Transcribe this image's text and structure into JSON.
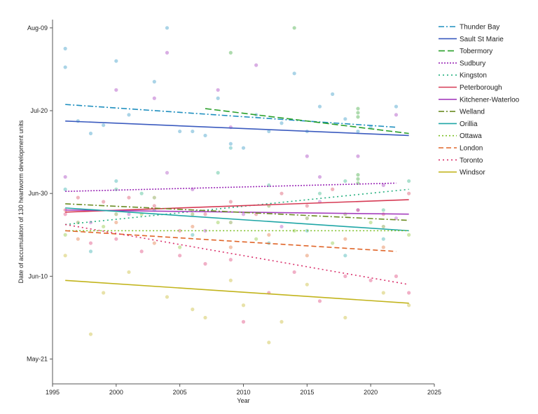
{
  "chart_data": {
    "type": "scatter",
    "xlabel": "Year",
    "ylabel": "Date of accumulation of 130 heartworm development units",
    "xlim": [
      1995,
      2025
    ],
    "ylim": [
      135,
      223
    ],
    "x_ticks": [
      1995,
      2000,
      2005,
      2010,
      2015,
      2020,
      2025
    ],
    "y_ticks": [
      {
        "value": 141,
        "label": "May-21"
      },
      {
        "value": 161,
        "label": "Jun-10"
      },
      {
        "value": 181,
        "label": "Jun-30"
      },
      {
        "value": 201,
        "label": "Jul-20"
      },
      {
        "value": 221,
        "label": "Aug-09"
      }
    ],
    "grid": false,
    "legend_position": "right",
    "series": [
      {
        "name": "Thunder Bay",
        "color": "#1f8fbf",
        "dash": "8,3,2,3",
        "trend": [
          [
            1996,
            202.5
          ],
          [
            2022,
            197
          ]
        ],
        "points": [
          [
            1996,
            216
          ],
          [
            1996,
            211.5
          ],
          [
            1997,
            198.5
          ],
          [
            1998,
            195.5
          ],
          [
            1999,
            197.5
          ],
          [
            2000,
            213
          ],
          [
            2001,
            200
          ],
          [
            2003,
            208
          ],
          [
            2004,
            221
          ],
          [
            2005,
            196
          ],
          [
            2006,
            196
          ],
          [
            2007,
            195
          ],
          [
            2008,
            204
          ],
          [
            2009,
            193
          ],
          [
            2010,
            192
          ],
          [
            2011,
            200
          ],
          [
            2012,
            196
          ],
          [
            2013,
            198
          ],
          [
            2014,
            210
          ],
          [
            2015,
            196
          ],
          [
            2016,
            202
          ],
          [
            2017,
            205
          ],
          [
            2018,
            199
          ],
          [
            2019,
            196
          ],
          [
            2020,
            197
          ],
          [
            2022,
            202
          ]
        ]
      },
      {
        "name": "Sault St Marie",
        "color": "#3b5bbf",
        "dash": "",
        "trend": [
          [
            1996,
            198.5
          ],
          [
            2023,
            195
          ]
        ],
        "points": []
      },
      {
        "name": "Tobermory",
        "color": "#2aa02a",
        "dash": "9,4",
        "trend": [
          [
            2007,
            201.5
          ],
          [
            2023,
            195.5
          ]
        ],
        "points": [
          [
            2009,
            215
          ],
          [
            2014,
            221
          ],
          [
            2019,
            201.5
          ],
          [
            2019,
            200.5
          ],
          [
            2019,
            199.5
          ],
          [
            2019,
            185.5
          ],
          [
            2019,
            184.5
          ],
          [
            2019,
            183.5
          ]
        ]
      },
      {
        "name": "Sudbury",
        "color": "#9b2ab7",
        "dash": "2,2",
        "trend": [
          [
            1996,
            181.5
          ],
          [
            2022,
            183.5
          ]
        ],
        "points": [
          [
            1996,
            185
          ],
          [
            2000,
            206
          ],
          [
            2003,
            204
          ],
          [
            2004,
            215
          ],
          [
            2006,
            182
          ],
          [
            2008,
            206
          ],
          [
            2009,
            197
          ],
          [
            2011,
            212
          ],
          [
            2015,
            190
          ],
          [
            2016,
            185
          ],
          [
            2019,
            190
          ],
          [
            2021,
            183
          ],
          [
            2022,
            200
          ]
        ]
      },
      {
        "name": "Kingston",
        "color": "#26b07f",
        "dash": "2,4",
        "trend": [
          [
            1996,
            173.5
          ],
          [
            2023,
            182
          ]
        ],
        "points": [
          [
            2000,
            182
          ],
          [
            2002,
            181
          ],
          [
            2008,
            186
          ],
          [
            2012,
            183
          ],
          [
            2016,
            181
          ],
          [
            2018,
            184
          ],
          [
            2021,
            177
          ],
          [
            2023,
            184
          ]
        ]
      },
      {
        "name": "Peterborough",
        "color": "#d63a54",
        "dash": "",
        "trend": [
          [
            1996,
            176.5
          ],
          [
            2023,
            179.5
          ]
        ],
        "points": [
          [
            1996,
            177
          ],
          [
            1997,
            180
          ],
          [
            1999,
            179
          ],
          [
            2001,
            180
          ],
          [
            2003,
            178
          ],
          [
            2005,
            172
          ],
          [
            2007,
            176
          ],
          [
            2009,
            179
          ],
          [
            2011,
            176
          ],
          [
            2013,
            181
          ],
          [
            2015,
            178
          ],
          [
            2017,
            182
          ],
          [
            2019,
            177
          ],
          [
            2021,
            176
          ],
          [
            2023,
            181
          ]
        ]
      },
      {
        "name": "Kitchener-Waterloo",
        "color": "#a53fbe",
        "dash": "",
        "trend": [
          [
            1996,
            177
          ],
          [
            2023,
            176
          ]
        ],
        "points": [
          [
            1998,
            174
          ],
          [
            2001,
            176
          ],
          [
            2004,
            186
          ],
          [
            2007,
            172
          ],
          [
            2010,
            176
          ],
          [
            2013,
            173
          ],
          [
            2016,
            179
          ],
          [
            2019,
            177
          ],
          [
            2022,
            175
          ]
        ]
      },
      {
        "name": "Welland",
        "color": "#6b8c23",
        "dash": "8,3,2,3",
        "trend": [
          [
            1996,
            178.5
          ],
          [
            2023,
            174.5
          ]
        ],
        "points": [
          [
            1997,
            174
          ],
          [
            2000,
            176
          ],
          [
            2003,
            180
          ],
          [
            2006,
            176
          ],
          [
            2009,
            174
          ],
          [
            2012,
            178
          ],
          [
            2015,
            175
          ],
          [
            2018,
            176
          ],
          [
            2021,
            173
          ]
        ]
      },
      {
        "name": "Orillia",
        "color": "#1fa6a6",
        "dash": "",
        "trend": [
          [
            1996,
            177.5
          ],
          [
            2023,
            172
          ]
        ],
        "points": [
          [
            1996,
            182
          ],
          [
            1998,
            167
          ],
          [
            2000,
            184
          ],
          [
            2003,
            177
          ],
          [
            2006,
            171
          ],
          [
            2009,
            192
          ],
          [
            2012,
            169
          ],
          [
            2015,
            172
          ],
          [
            2018,
            166
          ],
          [
            2021,
            170
          ]
        ]
      },
      {
        "name": "Ottawa",
        "color": "#7dbf25",
        "dash": "2,3",
        "trend": [
          [
            1996,
            172
          ],
          [
            2023,
            172
          ]
        ],
        "points": [
          [
            1996,
            171
          ],
          [
            1999,
            173
          ],
          [
            2002,
            176
          ],
          [
            2005,
            168
          ],
          [
            2008,
            174
          ],
          [
            2011,
            170
          ],
          [
            2014,
            172
          ],
          [
            2017,
            169
          ],
          [
            2020,
            174
          ],
          [
            2023,
            171
          ]
        ]
      },
      {
        "name": "London",
        "color": "#e0662a",
        "dash": "7,4",
        "trend": [
          [
            1996,
            172
          ],
          [
            2022,
            167
          ]
        ],
        "points": [
          [
            1997,
            170
          ],
          [
            2000,
            174
          ],
          [
            2003,
            169
          ],
          [
            2006,
            173
          ],
          [
            2009,
            168
          ],
          [
            2012,
            171
          ],
          [
            2015,
            166
          ],
          [
            2018,
            170
          ],
          [
            2021,
            168
          ]
        ]
      },
      {
        "name": "Toronto",
        "color": "#d9306b",
        "dash": "2,4",
        "trend": [
          [
            1996,
            173.5
          ],
          [
            2023,
            159
          ]
        ],
        "points": [
          [
            1996,
            176
          ],
          [
            1998,
            169
          ],
          [
            2000,
            170
          ],
          [
            2002,
            167
          ],
          [
            2005,
            166
          ],
          [
            2007,
            164
          ],
          [
            2009,
            165
          ],
          [
            2010,
            150
          ],
          [
            2012,
            157
          ],
          [
            2014,
            162
          ],
          [
            2016,
            155
          ],
          [
            2018,
            161
          ],
          [
            2020,
            160
          ],
          [
            2022,
            161
          ],
          [
            2023,
            157
          ]
        ]
      },
      {
        "name": "Windsor",
        "color": "#c2b41c",
        "dash": "",
        "trend": [
          [
            1996,
            160
          ],
          [
            2023,
            154.5
          ]
        ],
        "points": [
          [
            1996,
            166
          ],
          [
            1998,
            147
          ],
          [
            1999,
            157
          ],
          [
            2001,
            162
          ],
          [
            2004,
            156
          ],
          [
            2006,
            153
          ],
          [
            2007,
            151
          ],
          [
            2009,
            160
          ],
          [
            2010,
            154
          ],
          [
            2012,
            145
          ],
          [
            2013,
            150
          ],
          [
            2015,
            159
          ],
          [
            2018,
            151
          ],
          [
            2021,
            157
          ],
          [
            2023,
            154
          ]
        ]
      }
    ]
  }
}
